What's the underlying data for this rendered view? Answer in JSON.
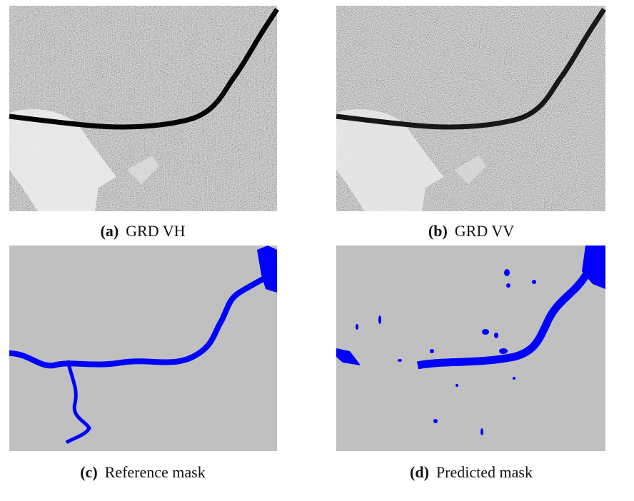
{
  "panels": [
    {
      "label": "(a)",
      "caption": "GRD VH"
    },
    {
      "label": "(b)",
      "caption": "GRD VV"
    },
    {
      "label": "(c)",
      "caption": "Reference mask"
    },
    {
      "label": "(d)",
      "caption": "Predicted mask"
    }
  ]
}
